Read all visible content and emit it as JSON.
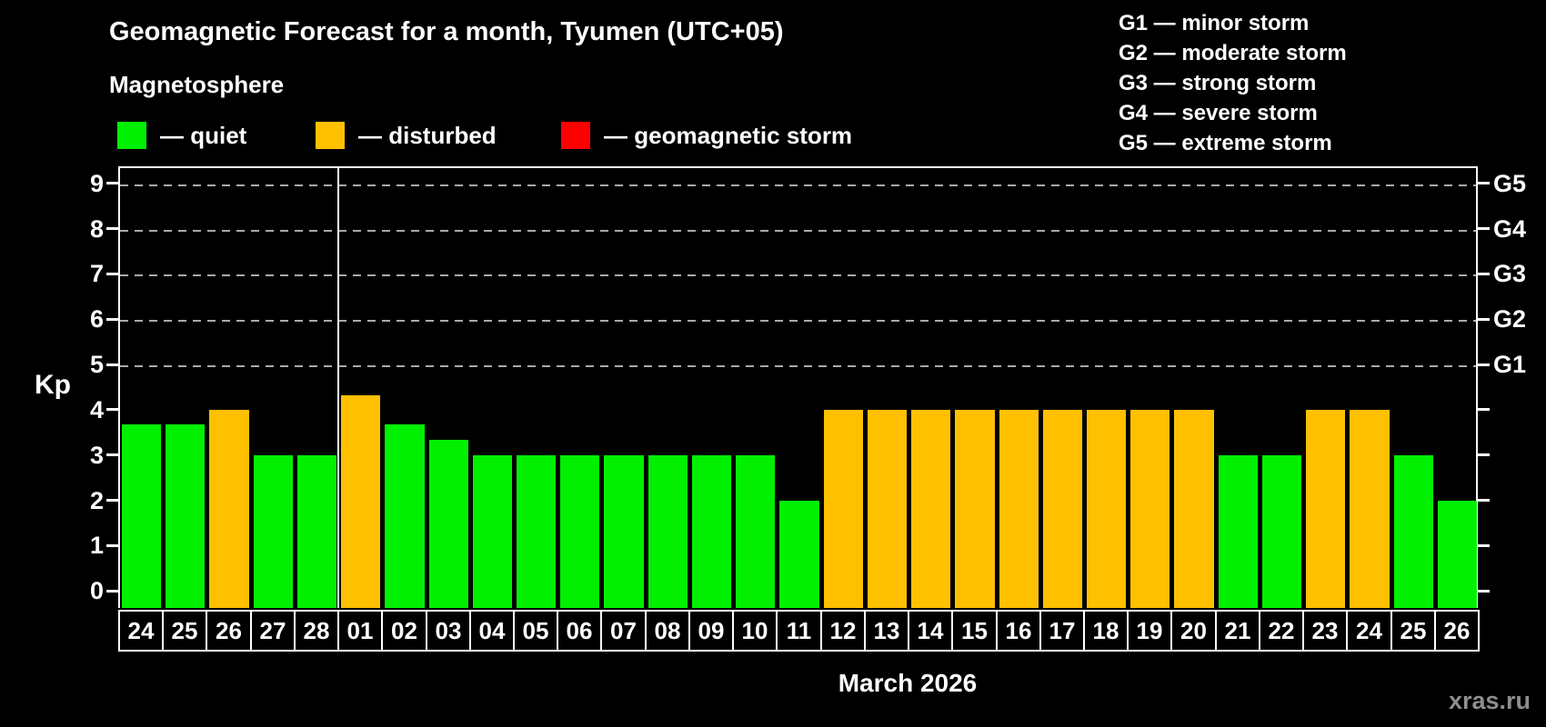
{
  "header": {
    "title": "Geomagnetic Forecast for a month, Tyumen (UTC+05)",
    "subtitle": "Magnetosphere",
    "legend": [
      {
        "name": "quiet",
        "label": "— quiet",
        "color": "#00f000"
      },
      {
        "name": "disturbed",
        "label": "— disturbed",
        "color": "#ffc000"
      },
      {
        "name": "storm",
        "label": "— geomagnetic storm",
        "color": "#ff0000"
      }
    ],
    "storm_scale": [
      "G1 — minor storm",
      "G2 — moderate storm",
      "G3 — strong storm",
      "G4 — severe storm",
      "G5 — extreme storm"
    ]
  },
  "chart_data": {
    "type": "bar",
    "title": "Geomagnetic Forecast for a month, Tyumen (UTC+05)",
    "xlabel": "March 2026",
    "ylabel": "Kp",
    "ylim": [
      0,
      9
    ],
    "yticks": [
      0,
      1,
      2,
      3,
      4,
      5,
      6,
      7,
      8,
      9
    ],
    "grid": {
      "color": "#a9a9a9",
      "levels": [
        5,
        6,
        7,
        8,
        9
      ]
    },
    "right_axis": [
      {
        "kp": 5,
        "label": "G1"
      },
      {
        "kp": 6,
        "label": "G2"
      },
      {
        "kp": 7,
        "label": "G3"
      },
      {
        "kp": 8,
        "label": "G4"
      },
      {
        "kp": 9,
        "label": "G5"
      }
    ],
    "categories": [
      "24",
      "25",
      "26",
      "27",
      "28",
      "01",
      "02",
      "03",
      "04",
      "05",
      "06",
      "07",
      "08",
      "09",
      "10",
      "11",
      "12",
      "13",
      "14",
      "15",
      "16",
      "17",
      "18",
      "19",
      "20",
      "21",
      "22",
      "23",
      "24",
      "25",
      "26"
    ],
    "values": [
      3.67,
      3.67,
      4,
      3,
      3,
      4.33,
      3.67,
      3.33,
      3,
      3,
      3,
      3,
      3,
      3,
      3,
      2,
      4,
      4,
      4,
      4,
      4,
      4,
      4,
      4,
      4,
      3,
      3,
      4,
      4,
      3,
      2
    ],
    "statuses": [
      "quiet",
      "quiet",
      "disturbed",
      "quiet",
      "quiet",
      "disturbed",
      "quiet",
      "quiet",
      "quiet",
      "quiet",
      "quiet",
      "quiet",
      "quiet",
      "quiet",
      "quiet",
      "quiet",
      "disturbed",
      "disturbed",
      "disturbed",
      "disturbed",
      "disturbed",
      "disturbed",
      "disturbed",
      "disturbed",
      "disturbed",
      "quiet",
      "quiet",
      "disturbed",
      "disturbed",
      "quiet",
      "quiet"
    ],
    "colors": {
      "quiet": "#00f000",
      "disturbed": "#ffc000",
      "storm": "#ff0000"
    },
    "month_start_index": 5,
    "legend_position": "top-left"
  },
  "footer": {
    "month_label": "March 2026",
    "watermark": "xras.ru"
  }
}
